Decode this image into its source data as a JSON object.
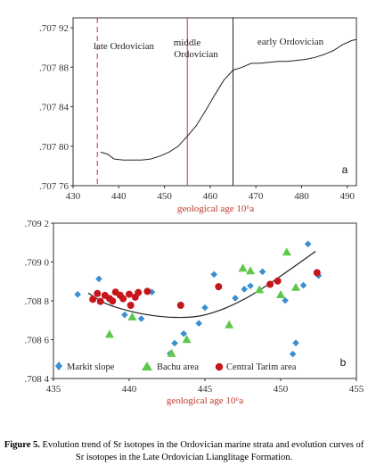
{
  "chart_data": [
    {
      "type": "line",
      "panel_label": "a",
      "xlabel": "geological age  10⁶a",
      "ylabel": "",
      "xlim": [
        430,
        492
      ],
      "ylim": [
        0.70776,
        0.70793
      ],
      "xticks": [
        430,
        440,
        450,
        460,
        470,
        480,
        490
      ],
      "yticks": [
        0.70776,
        0.7078,
        0.70784,
        0.70788,
        0.70792
      ],
      "ytick_labels": [
        ".707 76",
        ".707 80",
        ".707 84",
        ".707 88",
        ".707 92"
      ],
      "regions": [
        "late  Ordovician",
        "middle",
        "Ordovician",
        "early  Ordovician"
      ],
      "boundaries": [
        {
          "x": 435.3,
          "style": "dashed",
          "color": "#c0392b"
        },
        {
          "x": 455.0,
          "style": "solid",
          "color": "#c0392b"
        },
        {
          "x": 465.0,
          "style": "solid",
          "color": "#222222"
        }
      ],
      "series": [
        {
          "x": [
            436,
            437.5,
            439,
            441,
            443,
            445,
            447,
            449,
            451,
            453,
            455,
            457,
            459,
            461,
            463,
            465,
            467,
            469,
            471,
            473,
            475,
            477,
            479,
            481,
            483,
            485,
            487,
            489,
            491,
            492
          ],
          "y": [
            0.707794,
            0.707792,
            0.707787,
            0.707786,
            0.707786,
            0.707786,
            0.707787,
            0.70779,
            0.707794,
            0.7078,
            0.70781,
            0.707821,
            0.707836,
            0.707852,
            0.707867,
            0.707877,
            0.70788,
            0.707884,
            0.707884,
            0.707885,
            0.707886,
            0.707886,
            0.707887,
            0.707888,
            0.70789,
            0.707893,
            0.707897,
            0.707903,
            0.707907,
            0.707908
          ],
          "color": "#222222"
        }
      ]
    },
    {
      "type": "scatter",
      "panel_label": "b",
      "xlabel": "geological age  10⁶a",
      "ylabel": "",
      "xlim": [
        435,
        455
      ],
      "ylim": [
        0.7084,
        0.7092
      ],
      "xticks": [
        435,
        440,
        445,
        450,
        455
      ],
      "yticks": [
        0.7084,
        0.7086,
        0.7088,
        0.709,
        0.7092
      ],
      "ytick_labels": [
        ".708 4",
        ".708 6",
        ".708 8",
        ".709 0",
        ".709 2"
      ],
      "legend": "bottom",
      "series": [
        {
          "name": "Markit slope",
          "marker": "diamond",
          "color": "#3a8fd0",
          "x": [
            436.6,
            438.0,
            439.7,
            440.8,
            441.5,
            442.7,
            443.0,
            443.6,
            444.6,
            445.0,
            445.6,
            447.0,
            447.6,
            448.0,
            448.8,
            450.3,
            450.8,
            451.0,
            451.5,
            451.8,
            452.5
          ],
          "y": [
            0.708833,
            0.708913,
            0.708728,
            0.708708,
            0.708845,
            0.708528,
            0.708582,
            0.708631,
            0.708684,
            0.708765,
            0.708936,
            0.708814,
            0.70886,
            0.708877,
            0.70895,
            0.708802,
            0.708526,
            0.708583,
            0.70888,
            0.709093,
            0.70893
          ]
        },
        {
          "name": "Bachu area",
          "marker": "triangle",
          "color": "#5ec84a",
          "x": [
            438.7,
            440.2,
            442.8,
            443.8,
            446.6,
            447.5,
            448.0,
            448.6,
            450.0,
            450.4,
            451.0
          ],
          "y": [
            0.708628,
            0.708718,
            0.70853,
            0.708602,
            0.708677,
            0.708969,
            0.708955,
            0.708858,
            0.708832,
            0.709052,
            0.70887
          ]
        },
        {
          "name": "Central Tarim area",
          "marker": "circle",
          "color": "#c4161c",
          "x": [
            437.6,
            437.9,
            438.1,
            438.4,
            438.7,
            438.9,
            439.1,
            439.4,
            439.6,
            440.0,
            440.1,
            440.4,
            440.6,
            441.2,
            443.4,
            445.9,
            449.3,
            449.8,
            452.4
          ],
          "y": [
            0.708808,
            0.708838,
            0.708797,
            0.708828,
            0.708812,
            0.708799,
            0.708845,
            0.708829,
            0.708811,
            0.708834,
            0.708777,
            0.708819,
            0.708843,
            0.708849,
            0.708777,
            0.708873,
            0.708885,
            0.708902,
            0.708945
          ]
        },
        {
          "name": "",
          "marker": "none",
          "color": "#222222",
          "x": [
            437.3,
            438.5,
            440,
            441.5,
            443,
            444.5,
            446,
            447.5,
            449,
            450.5,
            452.3
          ],
          "y": [
            0.70884,
            0.708785,
            0.708748,
            0.708725,
            0.708715,
            0.70872,
            0.708752,
            0.708805,
            0.708875,
            0.708955,
            0.709055
          ]
        }
      ]
    }
  ],
  "caption": {
    "label": "Figure 5.",
    "text": " Evolution trend of Sr isotopes in the Ordovician marine strata and evolution curves of Sr isotopes in the Late Ordovician Lianglitage Formation."
  }
}
